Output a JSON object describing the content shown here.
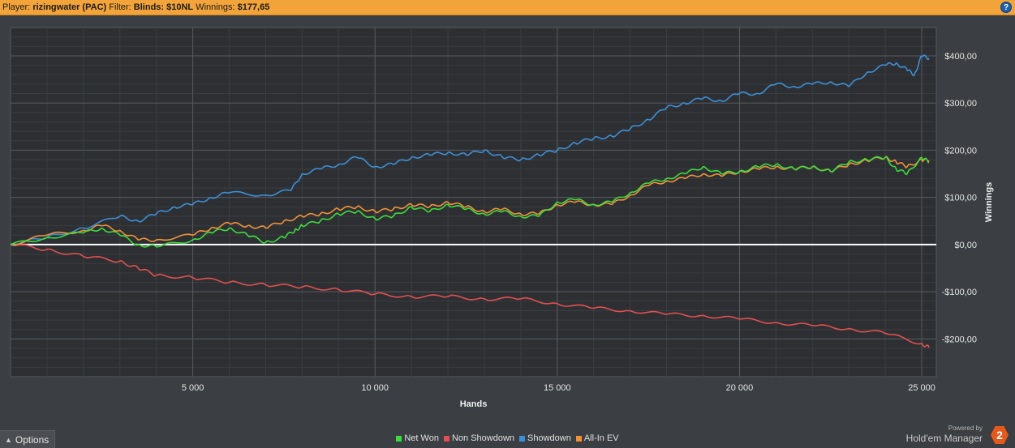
{
  "header": {
    "player_label": "Player:",
    "player_value": "rizingwater (PAC)",
    "filter_label": "Filter:",
    "filter_value": "Blinds: $10NL",
    "winnings_label": "Winnings:",
    "winnings_value": "$177,65",
    "help_label": "?"
  },
  "colors": {
    "background": "#3b3e42",
    "plot_background": "#2d2f33",
    "net_won": "#3ddc3d",
    "non_showdown": "#e0504f",
    "showdown": "#3d8fd6",
    "all_in_ev": "#f0923a",
    "zero_line": "#ffffff"
  },
  "chart_data": {
    "type": "line",
    "xlabel": "Hands",
    "ylabel": "Winnings",
    "xlim": [
      0,
      25400
    ],
    "ylim": [
      -280,
      460
    ],
    "x_ticks": [
      5000,
      10000,
      15000,
      20000,
      25000
    ],
    "x_tick_labels": [
      "5 000",
      "10 000",
      "15 000",
      "20 000",
      "25 000"
    ],
    "y_ticks": [
      400,
      300,
      200,
      100,
      0,
      -100,
      -200
    ],
    "y_tick_labels": [
      "$400,00",
      "$300,00",
      "$200,00",
      "$100,00",
      "$0,00",
      "-$100,00",
      "-$200,00"
    ],
    "grid": true,
    "legend_position": "bottom",
    "series": [
      {
        "name": "Net Won",
        "color": "#3ddc3d",
        "x": [
          0,
          1000,
          2000,
          2500,
          3000,
          3500,
          4000,
          5000,
          5500,
          6000,
          6500,
          7000,
          7500,
          7800,
          8000,
          8500,
          9000,
          9500,
          10000,
          10500,
          11000,
          11500,
          12000,
          12500,
          13000,
          13500,
          14000,
          14500,
          15000,
          15500,
          16000,
          16500,
          17000,
          17500,
          18000,
          18500,
          19000,
          19500,
          20000,
          20500,
          21000,
          21500,
          22000,
          22500,
          23000,
          23500,
          24000,
          24300,
          24600,
          25000,
          25200
        ],
        "y": [
          0,
          15,
          25,
          35,
          20,
          0,
          -5,
          10,
          25,
          35,
          20,
          5,
          15,
          30,
          40,
          50,
          65,
          70,
          55,
          60,
          80,
          70,
          85,
          75,
          65,
          70,
          60,
          60,
          90,
          95,
          85,
          90,
          110,
          130,
          140,
          150,
          165,
          150,
          155,
          165,
          170,
          160,
          165,
          155,
          175,
          180,
          185,
          160,
          150,
          185,
          175
        ]
      },
      {
        "name": "Non Showdown",
        "color": "#e0504f",
        "x": [
          0,
          1000,
          2000,
          3000,
          3500,
          4000,
          5000,
          6000,
          7000,
          8000,
          9000,
          10000,
          11000,
          12000,
          13000,
          14000,
          15000,
          16000,
          17000,
          18000,
          19000,
          20000,
          21000,
          22000,
          23000,
          24000,
          25000,
          25200
        ],
        "y": [
          0,
          -10,
          -25,
          -35,
          -50,
          -65,
          -70,
          -80,
          -85,
          -90,
          -95,
          -105,
          -110,
          -110,
          -115,
          -115,
          -125,
          -135,
          -140,
          -148,
          -150,
          -158,
          -165,
          -172,
          -178,
          -188,
          -210,
          -218
        ]
      },
      {
        "name": "Showdown",
        "color": "#3d8fd6",
        "x": [
          0,
          1000,
          2000,
          3000,
          3500,
          4000,
          4500,
          5000,
          5500,
          6000,
          7000,
          7700,
          8000,
          8500,
          9000,
          9500,
          10000,
          10500,
          11000,
          11500,
          12000,
          12500,
          13000,
          13500,
          14000,
          14500,
          15000,
          15500,
          16000,
          16500,
          17000,
          17500,
          18000,
          18500,
          19000,
          19500,
          20000,
          20500,
          21000,
          21500,
          22000,
          22500,
          23000,
          23500,
          24000,
          24300,
          24600,
          24800,
          25000,
          25200
        ],
        "y": [
          0,
          15,
          35,
          60,
          50,
          65,
          80,
          85,
          100,
          110,
          105,
          115,
          150,
          160,
          170,
          185,
          165,
          170,
          185,
          190,
          195,
          190,
          200,
          185,
          180,
          190,
          200,
          215,
          225,
          230,
          245,
          265,
          290,
          300,
          310,
          305,
          320,
          320,
          340,
          335,
          340,
          345,
          335,
          365,
          380,
          385,
          370,
          360,
          400,
          395
        ]
      },
      {
        "name": "All-In EV",
        "color": "#f0923a",
        "x": [
          0,
          1000,
          2000,
          2500,
          3000,
          3500,
          4000,
          5000,
          5500,
          6000,
          6500,
          7000,
          7500,
          8000,
          8500,
          9000,
          9500,
          10000,
          10500,
          11000,
          11500,
          12000,
          12500,
          13000,
          13500,
          14000,
          14500,
          15000,
          15500,
          16000,
          16500,
          17000,
          17500,
          18000,
          18500,
          19000,
          19500,
          20000,
          20500,
          21000,
          21500,
          22000,
          22500,
          23000,
          23500,
          24000,
          24300,
          24600,
          25000,
          25200
        ],
        "y": [
          0,
          20,
          30,
          40,
          30,
          10,
          10,
          20,
          35,
          45,
          40,
          35,
          50,
          60,
          65,
          75,
          80,
          70,
          75,
          85,
          80,
          90,
          80,
          70,
          75,
          65,
          65,
          85,
          90,
          85,
          85,
          105,
          125,
          135,
          140,
          150,
          145,
          155,
          160,
          165,
          160,
          165,
          155,
          170,
          178,
          185,
          175,
          165,
          180,
          178
        ]
      }
    ]
  },
  "legend": {
    "items": [
      "Net Won",
      "Non Showdown",
      "Showdown",
      "All-In EV"
    ]
  },
  "footer": {
    "options_label": "Options",
    "powered_by": "Powered by",
    "brand_name": "Hold'em Manager",
    "brand_logo": "2"
  }
}
